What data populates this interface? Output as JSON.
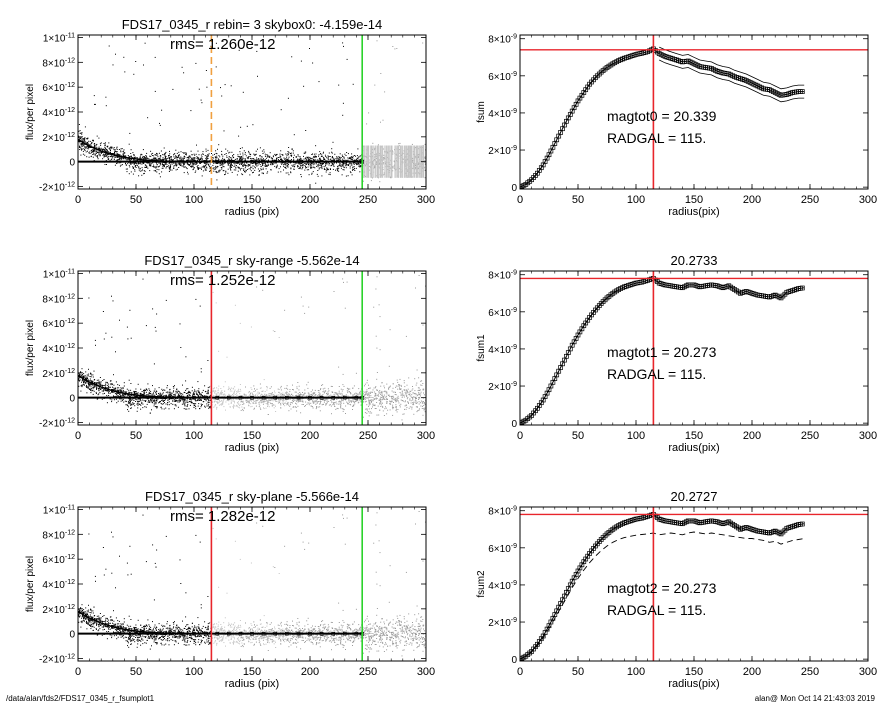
{
  "footer": {
    "path": "/data/alan/fds2/FDS17_0345_r_fsumplot1",
    "stamp": "alan@  Mon Oct 14 21:43:03 2019"
  },
  "colors": {
    "scatter_black": "#000000",
    "scatter_gray": "#9a9a9a",
    "scatter_light": "#c4c4c4",
    "red_line": "#e8252b",
    "green_line": "#2bd32b",
    "orange_dash": "#f0a040"
  },
  "chart_data": [
    {
      "type": "scatter",
      "title": "FDS17_0345_r rebin= 3    skybox0: -4.159e-14",
      "annotation": "rms= 1.260e-12",
      "xlabel": "radius (pix)",
      "ylabel": "flux/per pixel",
      "xlim": [
        0,
        300
      ],
      "ylim": [
        -2.2e-12,
        1.02e-11
      ],
      "xticks": [
        0,
        50,
        100,
        150,
        200,
        250,
        300
      ],
      "yticks": [
        {
          "v": -2e-12,
          "m": "-2",
          "e": "-12"
        },
        {
          "v": 0,
          "m": "0",
          "e": ""
        },
        {
          "v": 2e-12,
          "m": "2",
          "e": "-12"
        },
        {
          "v": 4e-12,
          "m": "4",
          "e": "-12"
        },
        {
          "v": 6e-12,
          "m": "6",
          "e": "-12"
        },
        {
          "v": 8e-12,
          "m": "8",
          "e": "-12"
        },
        {
          "v": 1e-11,
          "m": "1",
          "e": "-11"
        }
      ],
      "profile": {
        "x": [
          0,
          5,
          10,
          15,
          20,
          25,
          30,
          35,
          40,
          45,
          50,
          55,
          60,
          65,
          70,
          75,
          80,
          90,
          100,
          110,
          120,
          130,
          140,
          150,
          160,
          170,
          180,
          190,
          200,
          210,
          220,
          230,
          240,
          245
        ],
        "y": [
          1.8e-12,
          1.5e-12,
          1.25e-12,
          1.05e-12,
          8.5e-13,
          7e-13,
          5.5e-13,
          4.5e-13,
          3.5e-13,
          2.8e-13,
          2.2e-13,
          1.6e-13,
          1.2e-13,
          9e-14,
          6e-14,
          4e-14,
          2e-14,
          1e-14,
          0,
          -1e-14,
          0,
          1e-14,
          0,
          -1e-14,
          0,
          1e-14,
          0,
          1e-14,
          0,
          -1e-14,
          0,
          1e-14,
          0,
          0
        ]
      },
      "baseline_y": 0,
      "vlines": [
        {
          "x": 115,
          "style": "dashed",
          "color": "orange"
        },
        {
          "x": 245,
          "style": "solid",
          "color": "green"
        }
      ],
      "scatter_mode": "rebin"
    },
    {
      "type": "line",
      "title": "",
      "ylabel": "fsum",
      "xlabel": "radius(pix)",
      "xlim": [
        0,
        300
      ],
      "ylim": [
        -1e-10,
        8.2e-09
      ],
      "xticks": [
        0,
        50,
        100,
        150,
        200,
        250,
        300
      ],
      "yticks": [
        {
          "v": 0,
          "m": "0",
          "e": ""
        },
        {
          "v": 2e-09,
          "m": "2",
          "e": "-9"
        },
        {
          "v": 4e-09,
          "m": "4",
          "e": "-9"
        },
        {
          "v": 6e-09,
          "m": "6",
          "e": "-9"
        },
        {
          "v": 8e-09,
          "m": "8",
          "e": "-9"
        }
      ],
      "x": [
        0,
        5,
        10,
        15,
        20,
        25,
        30,
        35,
        40,
        45,
        50,
        55,
        60,
        65,
        70,
        75,
        80,
        85,
        90,
        95,
        100,
        105,
        110,
        115,
        120,
        125,
        130,
        135,
        140,
        145,
        150,
        155,
        160,
        165,
        170,
        175,
        180,
        185,
        190,
        195,
        200,
        205,
        210,
        215,
        220,
        225,
        230,
        235,
        240,
        245
      ],
      "y": [
        0,
        1.5e-10,
        4e-10,
        7.5e-10,
        1.2e-09,
        1.75e-09,
        2.35e-09,
        2.95e-09,
        3.55e-09,
        4.1e-09,
        4.65e-09,
        5.1e-09,
        5.55e-09,
        5.9e-09,
        6.2e-09,
        6.45e-09,
        6.65e-09,
        6.82e-09,
        6.95e-09,
        7.05e-09,
        7.15e-09,
        7.22e-09,
        7.3e-09,
        7.45e-09,
        7.2e-09,
        7.05e-09,
        6.95e-09,
        6.85e-09,
        6.75e-09,
        6.8e-09,
        6.65e-09,
        6.5e-09,
        6.45e-09,
        6.4e-09,
        6.25e-09,
        6.15e-09,
        6.1e-09,
        5.95e-09,
        5.85e-09,
        5.75e-09,
        5.6e-09,
        5.45e-09,
        5.3e-09,
        5.25e-09,
        5.1e-09,
        4.95e-09,
        5e-09,
        5.1e-09,
        5.15e-09,
        5.15e-09
      ],
      "band": 3.5e-10,
      "band_range": [
        120,
        245
      ],
      "hline_y": 7.4e-09,
      "vline_x": 115,
      "text": [
        "magtot0 =  20.339",
        "RADGAL =    115."
      ]
    },
    {
      "type": "scatter",
      "title": "FDS17_0345_r sky-range -5.562e-14",
      "annotation": "rms= 1.252e-12",
      "xlabel": "radius (pix)",
      "ylabel": "flux/per pixel",
      "xlim": [
        0,
        300
      ],
      "ylim": [
        -2.2e-12,
        1.02e-11
      ],
      "xticks": [
        0,
        50,
        100,
        150,
        200,
        250,
        300
      ],
      "yticks": [
        {
          "v": -2e-12,
          "m": "-2",
          "e": "-12"
        },
        {
          "v": 0,
          "m": "0",
          "e": ""
        },
        {
          "v": 2e-12,
          "m": "2",
          "e": "-12"
        },
        {
          "v": 4e-12,
          "m": "4",
          "e": "-12"
        },
        {
          "v": 6e-12,
          "m": "6",
          "e": "-12"
        },
        {
          "v": 8e-12,
          "m": "8",
          "e": "-12"
        },
        {
          "v": 1e-11,
          "m": "1",
          "e": "-11"
        }
      ],
      "profile": {
        "x": [
          0,
          5,
          10,
          15,
          20,
          25,
          30,
          35,
          40,
          45,
          50,
          55,
          60,
          65,
          70,
          75,
          80,
          90,
          100,
          110,
          120,
          130,
          140,
          150,
          160,
          170,
          180,
          190,
          200,
          210,
          220,
          230,
          240,
          245
        ],
        "y": [
          1.8e-12,
          1.5e-12,
          1.25e-12,
          1.05e-12,
          8.5e-13,
          7e-13,
          5.5e-13,
          4.5e-13,
          3.5e-13,
          2.8e-13,
          2.2e-13,
          1.6e-13,
          1.2e-13,
          9e-14,
          6e-14,
          4e-14,
          2e-14,
          1e-14,
          0,
          -1e-14,
          0,
          1e-14,
          0,
          -1e-14,
          0,
          1e-14,
          0,
          1e-14,
          0,
          -1e-14,
          0,
          1e-14,
          0,
          0
        ]
      },
      "baseline_y": 0,
      "vlines": [
        {
          "x": 115,
          "style": "solid",
          "color": "red"
        },
        {
          "x": 245,
          "style": "solid",
          "color": "green"
        }
      ],
      "scatter_mode": "bands"
    },
    {
      "type": "line",
      "title": "20.2733",
      "ylabel": "fsum1",
      "xlabel": "radius(pix)",
      "xlim": [
        0,
        300
      ],
      "ylim": [
        -1e-10,
        8.2e-09
      ],
      "xticks": [
        0,
        50,
        100,
        150,
        200,
        250,
        300
      ],
      "yticks": [
        {
          "v": 0,
          "m": "0",
          "e": ""
        },
        {
          "v": 2e-09,
          "m": "2",
          "e": "-9"
        },
        {
          "v": 4e-09,
          "m": "4",
          "e": "-9"
        },
        {
          "v": 6e-09,
          "m": "6",
          "e": "-9"
        },
        {
          "v": 8e-09,
          "m": "8",
          "e": "-9"
        }
      ],
      "x": [
        0,
        5,
        10,
        15,
        20,
        25,
        30,
        35,
        40,
        45,
        50,
        55,
        60,
        65,
        70,
        75,
        80,
        85,
        90,
        95,
        100,
        105,
        110,
        115,
        120,
        125,
        130,
        135,
        140,
        145,
        150,
        155,
        160,
        165,
        170,
        175,
        180,
        185,
        190,
        195,
        200,
        205,
        210,
        215,
        220,
        225,
        230,
        235,
        240,
        245
      ],
      "y": [
        0,
        1.6e-10,
        4.2e-10,
        8e-10,
        1.25e-09,
        1.8e-09,
        2.4e-09,
        3e-09,
        3.6e-09,
        4.2e-09,
        4.75e-09,
        5.25e-09,
        5.7e-09,
        6.1e-09,
        6.45e-09,
        6.75e-09,
        7e-09,
        7.2e-09,
        7.35e-09,
        7.45e-09,
        7.55e-09,
        7.6e-09,
        7.7e-09,
        7.8e-09,
        7.55e-09,
        7.45e-09,
        7.4e-09,
        7.35e-09,
        7.3e-09,
        7.45e-09,
        7.45e-09,
        7.35e-09,
        7.4e-09,
        7.45e-09,
        7.4e-09,
        7.3e-09,
        7.4e-09,
        7.2e-09,
        7e-09,
        7.1e-09,
        7e-09,
        6.9e-09,
        6.85e-09,
        6.8e-09,
        6.9e-09,
        6.75e-09,
        7.05e-09,
        7.15e-09,
        7.25e-09,
        7.3e-09
      ],
      "hline_y": 7.8e-09,
      "vline_x": 115,
      "text": [
        "magtot1 =  20.273",
        "RADGAL =    115."
      ]
    },
    {
      "type": "scatter",
      "title": "FDS17_0345_r sky-plane -5.566e-14",
      "annotation": "rms= 1.282e-12",
      "xlabel": "radius (pix)",
      "ylabel": "flux/per pixel",
      "xlim": [
        0,
        300
      ],
      "ylim": [
        -2.2e-12,
        1.02e-11
      ],
      "xticks": [
        0,
        50,
        100,
        150,
        200,
        250,
        300
      ],
      "yticks": [
        {
          "v": -2e-12,
          "m": "-2",
          "e": "-12"
        },
        {
          "v": 0,
          "m": "0",
          "e": ""
        },
        {
          "v": 2e-12,
          "m": "2",
          "e": "-12"
        },
        {
          "v": 4e-12,
          "m": "4",
          "e": "-12"
        },
        {
          "v": 6e-12,
          "m": "6",
          "e": "-12"
        },
        {
          "v": 8e-12,
          "m": "8",
          "e": "-12"
        },
        {
          "v": 1e-11,
          "m": "1",
          "e": "-11"
        }
      ],
      "profile": {
        "x": [
          0,
          5,
          10,
          15,
          20,
          25,
          30,
          35,
          40,
          45,
          50,
          55,
          60,
          65,
          70,
          75,
          80,
          90,
          100,
          110,
          120,
          130,
          140,
          150,
          160,
          170,
          180,
          190,
          200,
          210,
          220,
          230,
          240,
          245
        ],
        "y": [
          1.8e-12,
          1.5e-12,
          1.25e-12,
          1.05e-12,
          8.5e-13,
          7e-13,
          5.5e-13,
          4.5e-13,
          3.5e-13,
          2.8e-13,
          2.2e-13,
          1.6e-13,
          1.2e-13,
          9e-14,
          6e-14,
          4e-14,
          2e-14,
          1e-14,
          0,
          -1e-14,
          0,
          1e-14,
          0,
          -1e-14,
          0,
          1e-14,
          0,
          1e-14,
          0,
          -1e-14,
          0,
          1e-14,
          0,
          0
        ]
      },
      "baseline_y": 0,
      "vlines": [
        {
          "x": 115,
          "style": "solid",
          "color": "red"
        },
        {
          "x": 245,
          "style": "solid",
          "color": "green"
        }
      ],
      "scatter_mode": "bands"
    },
    {
      "type": "line",
      "title": "20.2727",
      "ylabel": "fsum2",
      "xlabel": "radius(pix)",
      "xlim": [
        0,
        300
      ],
      "ylim": [
        -1e-10,
        8.2e-09
      ],
      "xticks": [
        0,
        50,
        100,
        150,
        200,
        250,
        300
      ],
      "yticks": [
        {
          "v": 0,
          "m": "0",
          "e": ""
        },
        {
          "v": 2e-09,
          "m": "2",
          "e": "-9"
        },
        {
          "v": 4e-09,
          "m": "4",
          "e": "-9"
        },
        {
          "v": 6e-09,
          "m": "6",
          "e": "-9"
        },
        {
          "v": 8e-09,
          "m": "8",
          "e": "-9"
        }
      ],
      "x": [
        0,
        5,
        10,
        15,
        20,
        25,
        30,
        35,
        40,
        45,
        50,
        55,
        60,
        65,
        70,
        75,
        80,
        85,
        90,
        95,
        100,
        105,
        110,
        115,
        120,
        125,
        130,
        135,
        140,
        145,
        150,
        155,
        160,
        165,
        170,
        175,
        180,
        185,
        190,
        195,
        200,
        205,
        210,
        215,
        220,
        225,
        230,
        235,
        240,
        245
      ],
      "y": [
        0,
        1.6e-10,
        4.2e-10,
        8e-10,
        1.25e-09,
        1.8e-09,
        2.4e-09,
        3e-09,
        3.6e-09,
        4.2e-09,
        4.75e-09,
        5.25e-09,
        5.7e-09,
        6.1e-09,
        6.45e-09,
        6.75e-09,
        7e-09,
        7.2e-09,
        7.35e-09,
        7.45e-09,
        7.55e-09,
        7.6e-09,
        7.7e-09,
        7.8e-09,
        7.55e-09,
        7.45e-09,
        7.4e-09,
        7.35e-09,
        7.3e-09,
        7.45e-09,
        7.45e-09,
        7.35e-09,
        7.4e-09,
        7.45e-09,
        7.4e-09,
        7.3e-09,
        7.4e-09,
        7.2e-09,
        7e-09,
        7.1e-09,
        7e-09,
        6.9e-09,
        6.85e-09,
        6.8e-09,
        6.9e-09,
        6.75e-09,
        7.05e-09,
        7.15e-09,
        7.25e-09,
        7.3e-09
      ],
      "dashed_y": [
        0,
        1.5e-10,
        3.8e-10,
        7.2e-10,
        1.15e-09,
        1.65e-09,
        2.2e-09,
        2.75e-09,
        3.3e-09,
        3.85e-09,
        4.35e-09,
        4.8e-09,
        5.2e-09,
        5.55e-09,
        5.85e-09,
        6.1e-09,
        6.3e-09,
        6.45e-09,
        6.55e-09,
        6.62e-09,
        6.68e-09,
        6.72e-09,
        6.75e-09,
        6.8e-09,
        6.7e-09,
        6.75e-09,
        6.8e-09,
        6.75e-09,
        6.7e-09,
        6.8e-09,
        6.85e-09,
        6.8e-09,
        6.75e-09,
        6.8e-09,
        6.75e-09,
        6.7e-09,
        6.65e-09,
        6.6e-09,
        6.55e-09,
        6.5e-09,
        6.5e-09,
        6.45e-09,
        6.4e-09,
        6.3e-09,
        6.35e-09,
        6.2e-09,
        6.3e-09,
        6.4e-09,
        6.45e-09,
        6.5e-09
      ],
      "hline_y": 7.8e-09,
      "vline_x": 115,
      "text": [
        "magtot2 =  20.273",
        "RADGAL =    115."
      ]
    }
  ]
}
